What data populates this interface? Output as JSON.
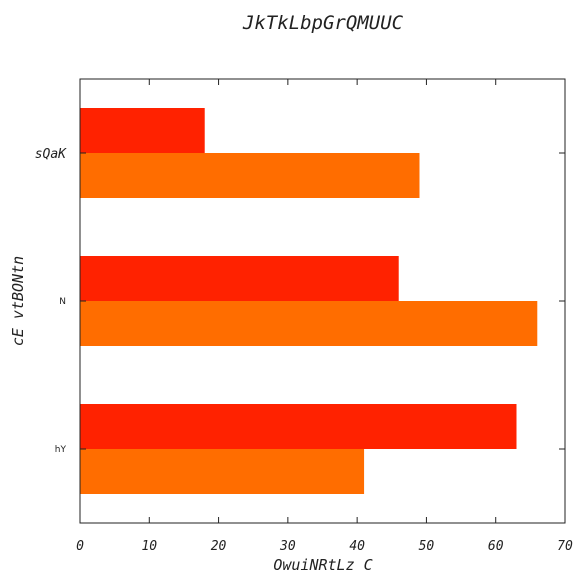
{
  "chart_data": {
    "type": "bar",
    "orientation": "horizontal",
    "title": "JkTkLbpGrQMUUC",
    "xlabel": "OwuiNRtLz C",
    "ylabel": "cE vtBONtn",
    "categories": [
      "sQaK",
      "N",
      "hY"
    ],
    "series": [
      {
        "values": [
          18,
          46,
          63
        ],
        "color": "#ff2200"
      },
      {
        "values": [
          49,
          66,
          41
        ],
        "color": "#ff6d00"
      }
    ],
    "xlim": [
      0,
      70
    ],
    "xticks": [
      0,
      10,
      20,
      30,
      40,
      50,
      60,
      70
    ],
    "grid": false,
    "legend": "none"
  }
}
